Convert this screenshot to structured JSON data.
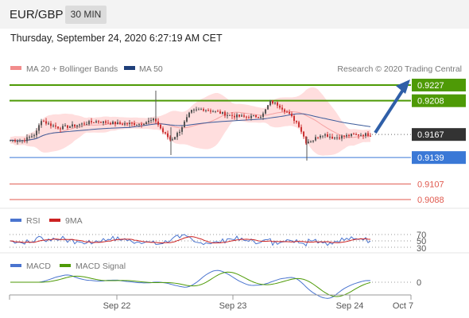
{
  "header": {
    "symbol": "EUR/GBP",
    "timeframe": "30 MIN"
  },
  "datetime": "Thursday, September 24, 2020 6:27:19 AM CET",
  "copyright": "Research © 2020 Trading Central",
  "chart_data": {
    "type": "candlestick",
    "legend": [
      "MA 20 + Bollinger Bands",
      "MA 50"
    ],
    "x_ticks": [
      "Sep 22",
      "Sep 23",
      "Sep 24",
      "Oct 7"
    ],
    "price_range": [
      0.908,
      0.924
    ],
    "last_price": 0.9167,
    "levels": [
      {
        "value": 0.9227,
        "label": "0.9227",
        "kind": "resistance",
        "color": "#4e9a06"
      },
      {
        "value": 0.9208,
        "label": "0.9208",
        "kind": "resistance",
        "color": "#4e9a06"
      },
      {
        "value": 0.9167,
        "label": "0.9167",
        "kind": "current",
        "color": "#333333"
      },
      {
        "value": 0.9139,
        "label": "0.9139",
        "kind": "pivot",
        "color": "#3a78d6"
      },
      {
        "value": 0.9107,
        "label": "0.9107",
        "kind": "support",
        "color": "#e05a4f"
      },
      {
        "value": 0.9088,
        "label": "0.9088",
        "kind": "support",
        "color": "#e05a4f"
      }
    ],
    "rsi": {
      "legend": [
        "RSI",
        "9MA"
      ],
      "levels": [
        "70",
        "50",
        "30"
      ]
    },
    "macd": {
      "legend": [
        "MACD",
        "MACD Signal"
      ],
      "zero_label": "0"
    },
    "colors": {
      "up": "#555555",
      "down": "#cc3333",
      "band": "#ffd6d6",
      "ma50": "#3b5b9a",
      "rsi": "#4a74cf",
      "rsi_ma": "#cc2222",
      "macd": "#4a74cf",
      "macd_signal": "#4e9a06"
    }
  }
}
